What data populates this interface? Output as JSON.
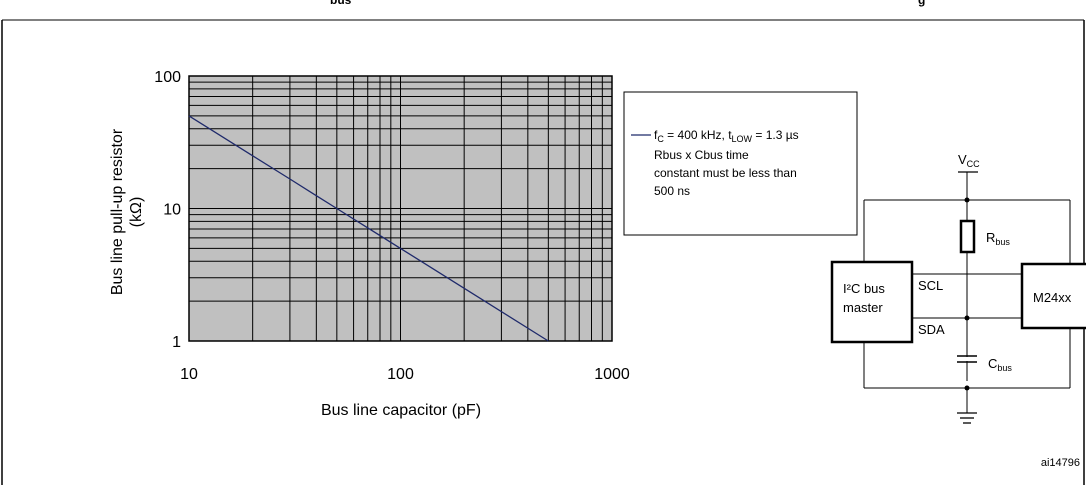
{
  "top_caption": {
    "fragment_left": "bus",
    "fragment_right": "g"
  },
  "chart_data": {
    "type": "line",
    "xscale": "log",
    "yscale": "log",
    "xlim": [
      10,
      1000
    ],
    "ylim": [
      1,
      100
    ],
    "xlabel": "Bus line capacitor (pF)",
    "ylabel_line1": "Bus line pull-up resistor",
    "ylabel_line2": "(kΩ)",
    "xticks": [
      "10",
      "100",
      "1000"
    ],
    "yticks": [
      "1",
      "10",
      "100"
    ],
    "grid": true,
    "plot_background": "#c0c0c0",
    "series": [
      {
        "name": "fC = 400 kHz, tLOW = 1.3 µs",
        "color": "#1f2a6b",
        "x": [
          10,
          20,
          30,
          40,
          50,
          100,
          200,
          500
        ],
        "y": [
          50,
          25,
          16.7,
          12.5,
          10,
          5,
          2.5,
          1
        ]
      }
    ]
  },
  "legend": {
    "f_main": "f",
    "f_sub": "C",
    "f_mid": " = 400 kHz, t",
    "t_sub": "LOW",
    "f_end": " = 1.3 µs",
    "note_line1": "Rbus x Cbus time",
    "note_line2": "constant must be less than",
    "note_line3": "500 ns"
  },
  "circuit": {
    "vcc_main": "V",
    "vcc_sub": "CC",
    "rbus_main": "R",
    "rbus_sub": "bus",
    "cbus_main": "C",
    "cbus_sub": "bus",
    "master_line1": "I²C bus",
    "master_line2": "master",
    "scl": "SCL",
    "sda": "SDA",
    "slave": "M24xx"
  },
  "figure_ref": "ai14796"
}
